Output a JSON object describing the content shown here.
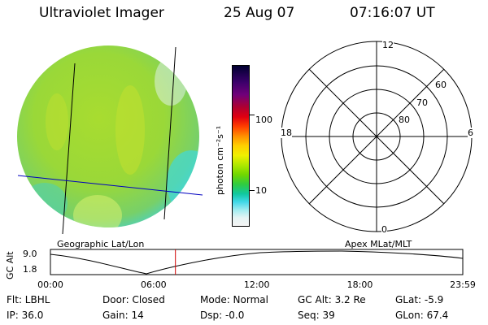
{
  "header": {
    "instrument": "Ultraviolet Imager",
    "date": "25 Aug 07",
    "time": "07:16:07 UT"
  },
  "colorbar": {
    "unit_label": "photon cm⁻²s⁻¹",
    "ticks": [
      {
        "value": 100,
        "label": "100"
      },
      {
        "value": 10,
        "label": "10"
      }
    ],
    "scale": "log",
    "colors": [
      "#000030",
      "#3a006a",
      "#70007a",
      "#b00030",
      "#e00010",
      "#ff4000",
      "#ff9000",
      "#ffd000",
      "#f0f000",
      "#b0e800",
      "#70d800",
      "#30cc40",
      "#10c8a0",
      "#40d8e8",
      "#a0ecf0",
      "#e6f4f4",
      "#f4f4f4"
    ]
  },
  "left_panel": {
    "label": "Geographic Lat/Lon"
  },
  "right_panel": {
    "label": "Apex  MLat/MLT",
    "mlt_labels": {
      "top": "12",
      "left": "18",
      "right": "6",
      "bottom": "0"
    },
    "lat_labels": [
      "60",
      "70",
      "80"
    ]
  },
  "timeline": {
    "ylabel": "GC Alt",
    "y_ticks": [
      "9.0",
      "1.8"
    ],
    "x_ticks": [
      "00:00",
      "06:00",
      "12:00",
      "18:00",
      "23:59"
    ],
    "current_time_hours": 7.27,
    "marker_color": "#d00000"
  },
  "info": {
    "flt": "Flt: LBHL",
    "ip": "IP: 36.0",
    "door": "Door: Closed",
    "gain": "Gain: 14",
    "mode": "Mode: Normal",
    "dsp": "Dsp:   -0.0",
    "gc_alt": "GC Alt: 3.2 Re",
    "seq": "Seq: 39",
    "glat": "GLat:   -5.9",
    "glon": "GLon:  67.4"
  }
}
